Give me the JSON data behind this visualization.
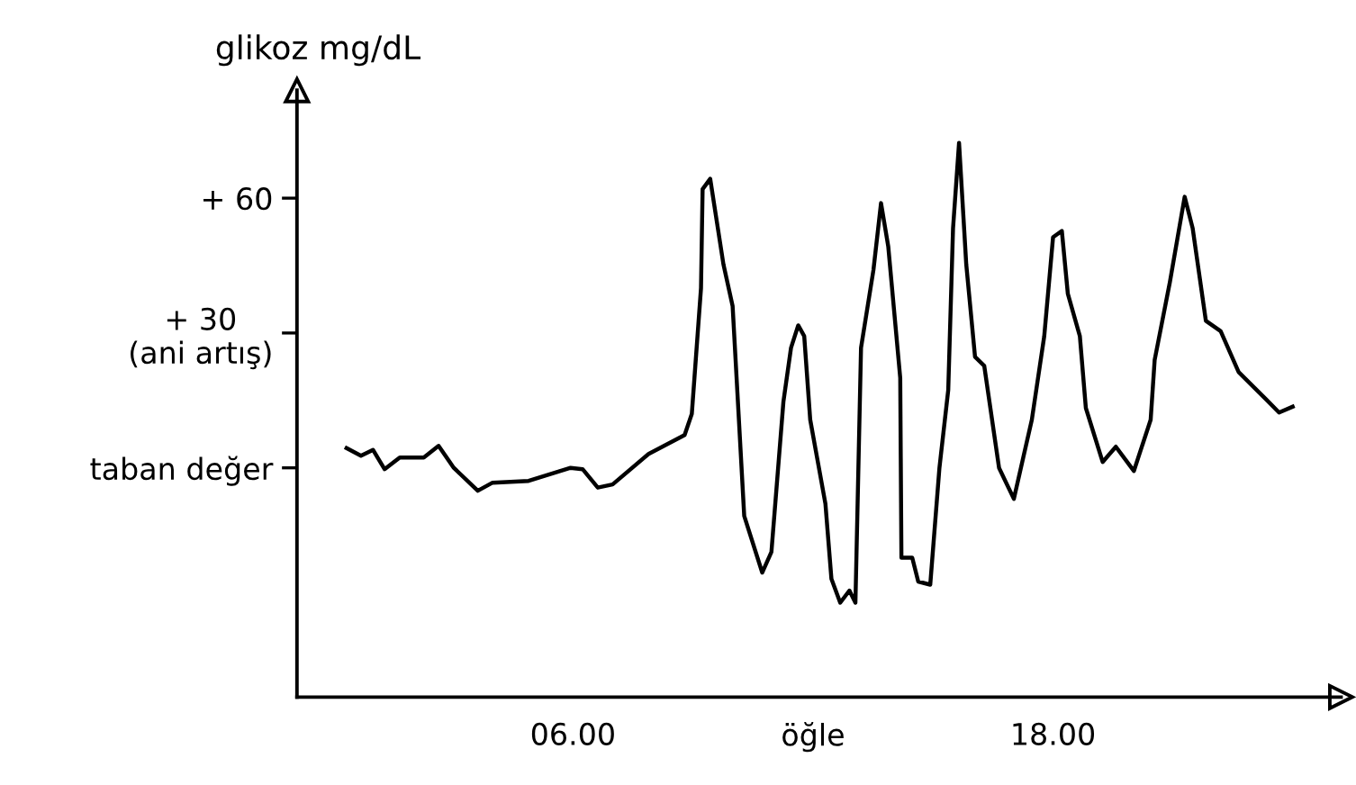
{
  "chart_data": {
    "type": "line",
    "ylabel": "glikoz mg/dL",
    "xlim": [
      -0.9,
      25.2
    ],
    "ylim": [
      -51,
      84
    ],
    "xticks": [
      {
        "value": 6,
        "label": "06.00"
      },
      {
        "value": 12,
        "label": "öğle"
      },
      {
        "value": 18,
        "label": "18.00"
      }
    ],
    "yticks": [
      {
        "value": 0,
        "label": "taban değer"
      },
      {
        "value": 30,
        "label": "+ 30\n(ani artış)"
      },
      {
        "value": 60,
        "label": "+ 60"
      }
    ],
    "grid": false,
    "legend": false,
    "marker": "none",
    "line_style": "solid",
    "series": [
      {
        "color": "#000000",
        "x": [
          0.34,
          0.7,
          1.0,
          1.29,
          1.67,
          2.27,
          2.64,
          3.02,
          3.62,
          3.99,
          4.89,
          5.94,
          6.24,
          6.62,
          6.99,
          7.89,
          8.79,
          8.97,
          9.2,
          9.24,
          9.43,
          9.76,
          9.99,
          10.28,
          10.73,
          10.96,
          11.26,
          11.45,
          11.63,
          11.78,
          11.93,
          12.31,
          12.46,
          12.68,
          12.91,
          13.06,
          13.2,
          13.51,
          13.7,
          13.88,
          14.18,
          14.21,
          14.48,
          14.63,
          14.93,
          15.16,
          15.38,
          15.5,
          15.65,
          15.83,
          16.05,
          16.28,
          16.65,
          17.02,
          17.47,
          17.78,
          18.0,
          18.22,
          18.37,
          18.67,
          18.82,
          19.24,
          19.57,
          20.02,
          20.44,
          20.54,
          20.92,
          21.29,
          21.49,
          21.82,
          22.19,
          22.64,
          23.32,
          23.65,
          23.99
        ],
        "values": [
          4.4,
          2.7,
          4,
          -0.3,
          2.3,
          2.3,
          4.9,
          0,
          -5.1,
          -3.3,
          -2.9,
          0,
          -0.3,
          -4.4,
          -3.7,
          3.1,
          7.3,
          12,
          40,
          62,
          64.3,
          45.3,
          36,
          -10.7,
          -23.3,
          -18.7,
          14.7,
          26.7,
          31.7,
          29.3,
          10.7,
          -8,
          -24.7,
          -30,
          -27.3,
          -30,
          26.7,
          44,
          58.9,
          49.3,
          20,
          -20,
          -20,
          -25.3,
          -26,
          0,
          17.3,
          53.3,
          72.3,
          45.3,
          24.7,
          22.7,
          0,
          -6.9,
          10.7,
          29.3,
          51.3,
          52.7,
          38.7,
          29.3,
          13.3,
          1.3,
          4.7,
          -0.7,
          10.7,
          24,
          41.3,
          60.3,
          53.3,
          32.7,
          30.4,
          21.3,
          15.3,
          12.3,
          13.6
        ]
      }
    ]
  }
}
